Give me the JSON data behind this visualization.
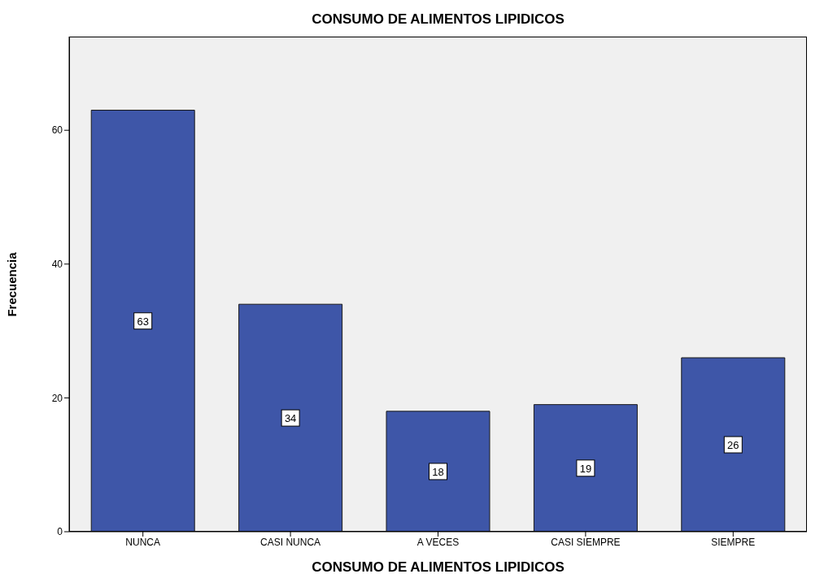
{
  "chart_data": {
    "type": "bar",
    "title": "CONSUMO DE ALIMENTOS LIPIDICOS",
    "xlabel": "CONSUMO DE ALIMENTOS LIPIDICOS",
    "ylabel": "Frecuencia",
    "categories": [
      "NUNCA",
      "CASI NUNCA",
      "A VECES",
      "CASI SIEMPRE",
      "SIEMPRE"
    ],
    "values": [
      63,
      34,
      18,
      19,
      26
    ],
    "color": "#3e56a8",
    "ylim": [
      0,
      74
    ],
    "yticks": [
      0,
      20,
      40,
      60
    ],
    "grid": false,
    "data_labels": true
  }
}
